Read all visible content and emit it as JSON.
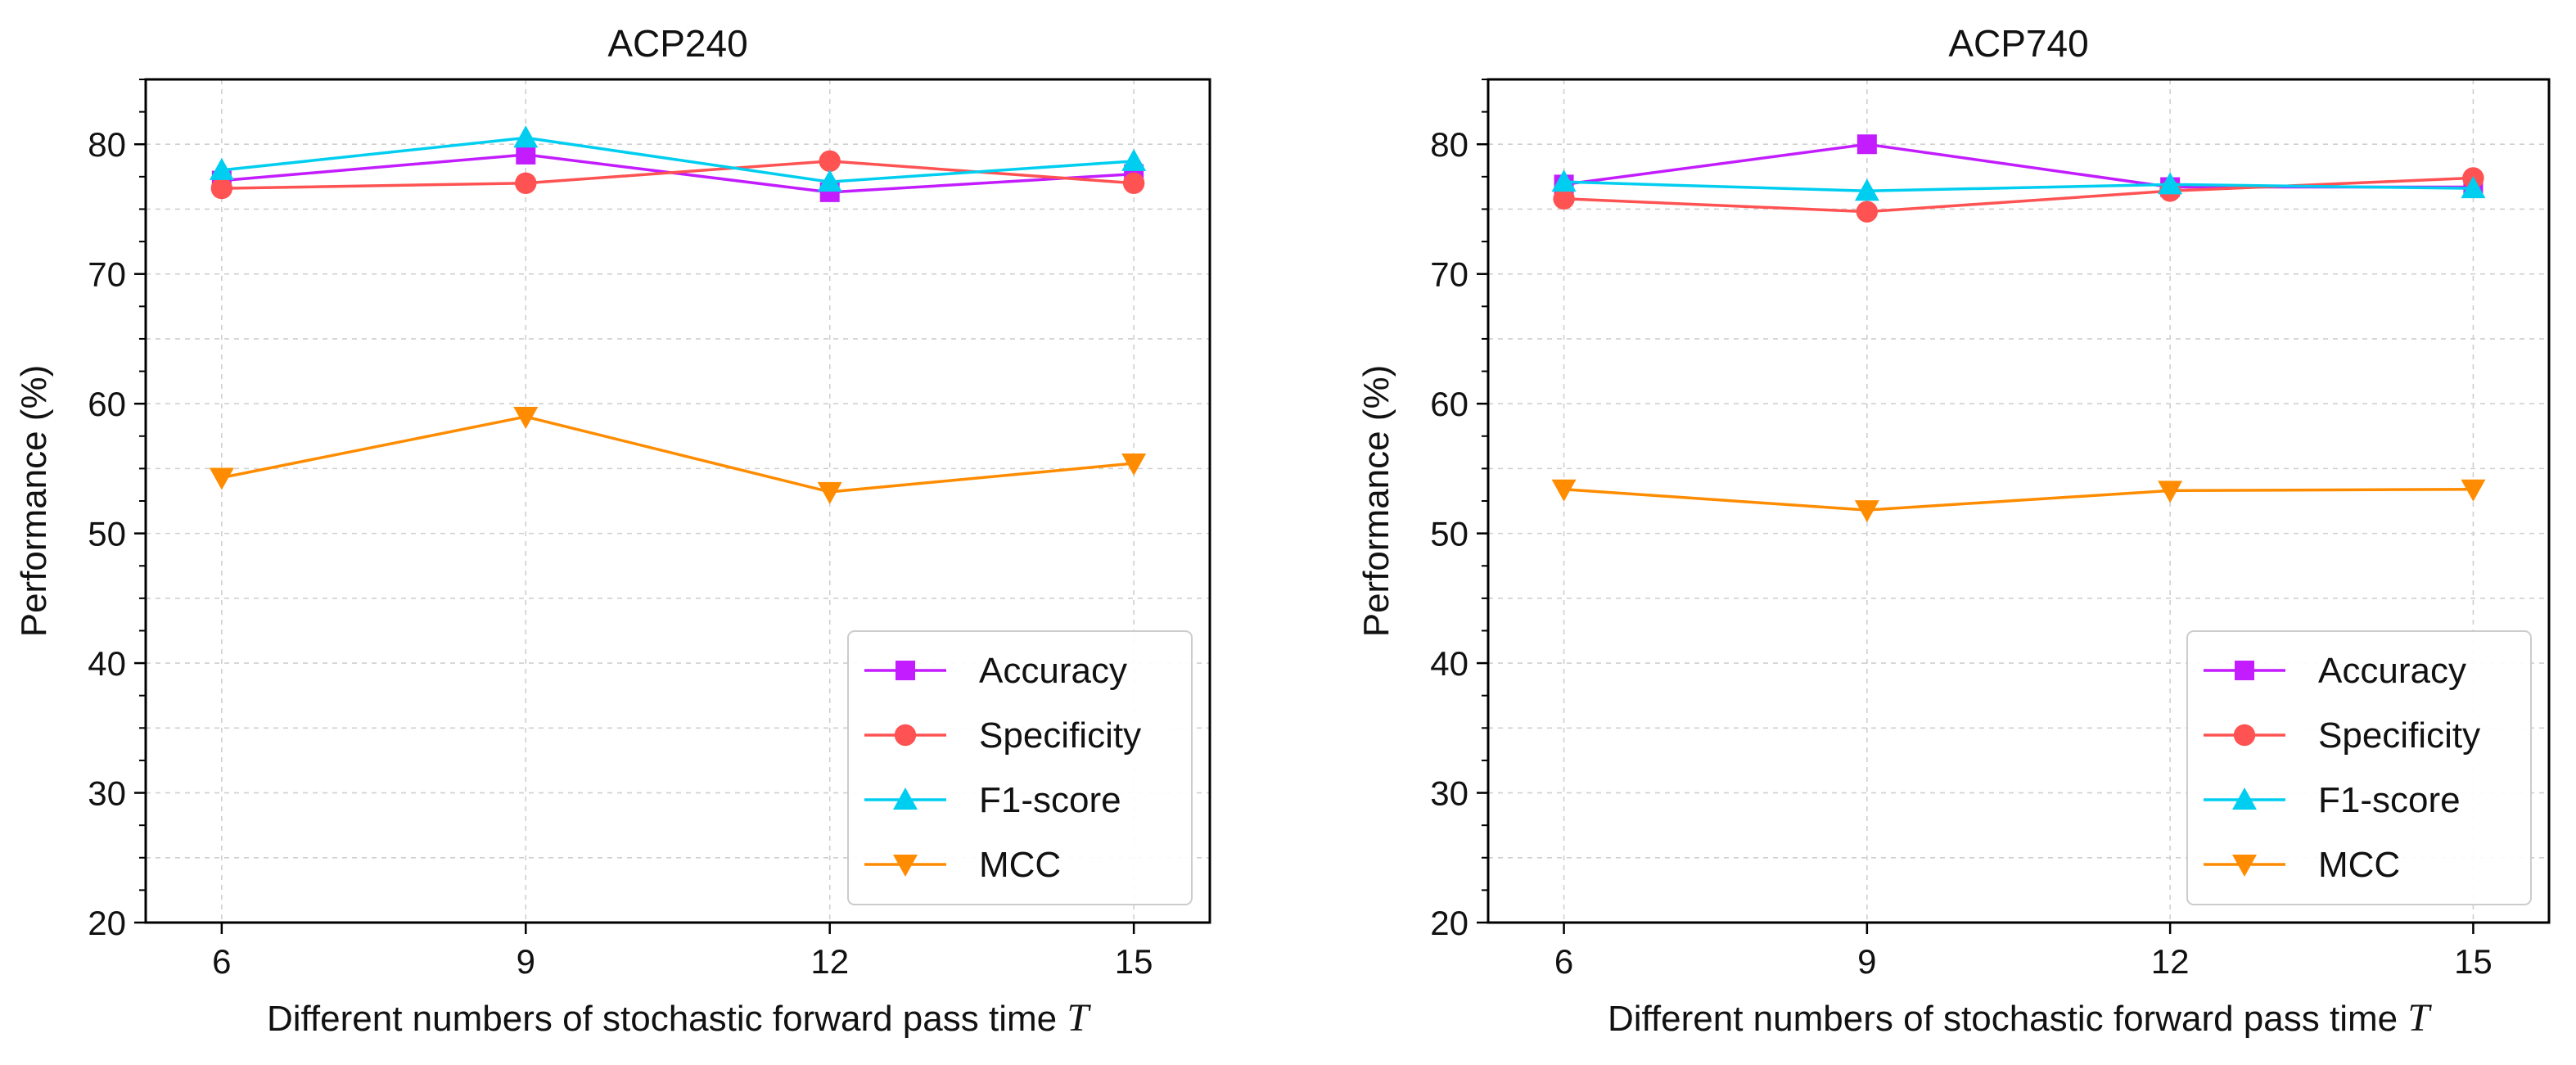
{
  "colors": {
    "Accuracy": "#c21cff",
    "Specificity": "#ff5252",
    "F1-score": "#00cef0",
    "MCC": "#ff8c00"
  },
  "chart_data": [
    {
      "type": "line",
      "title": "ACP240",
      "xlabel": "Different numbers of stochastic forward pass time",
      "xlabel_symbol": "T",
      "ylabel": "Performance (%)",
      "x": [
        6,
        9,
        12,
        15
      ],
      "xticks": [
        "6",
        "9",
        "12",
        "15"
      ],
      "ylim": [
        20,
        85
      ],
      "yticks": [
        20,
        30,
        40,
        50,
        60,
        70,
        80
      ],
      "grid": true,
      "legend_position": "lower-right",
      "series": [
        {
          "name": "Accuracy",
          "marker": "square",
          "values": [
            77.2,
            79.2,
            76.3,
            77.7
          ]
        },
        {
          "name": "Specificity",
          "marker": "circle",
          "values": [
            76.6,
            77.0,
            78.7,
            77.0
          ]
        },
        {
          "name": "F1-score",
          "marker": "triangle-up",
          "values": [
            78.0,
            80.5,
            77.1,
            78.7
          ]
        },
        {
          "name": "MCC",
          "marker": "triangle-down",
          "values": [
            54.3,
            59.0,
            53.2,
            55.4
          ]
        }
      ]
    },
    {
      "type": "line",
      "title": "ACP740",
      "xlabel": "Different numbers of stochastic forward pass time",
      "xlabel_symbol": "T",
      "ylabel": "Performance (%)",
      "x": [
        6,
        9,
        12,
        15
      ],
      "xticks": [
        "6",
        "9",
        "12",
        "15"
      ],
      "ylim": [
        20,
        85
      ],
      "yticks": [
        20,
        30,
        40,
        50,
        60,
        70,
        80
      ],
      "grid": true,
      "legend_position": "lower-right",
      "series": [
        {
          "name": "Accuracy",
          "marker": "square",
          "values": [
            76.9,
            80.0,
            76.7,
            76.7
          ]
        },
        {
          "name": "Specificity",
          "marker": "circle",
          "values": [
            75.8,
            74.8,
            76.4,
            77.4
          ]
        },
        {
          "name": "F1-score",
          "marker": "triangle-up",
          "values": [
            77.1,
            76.4,
            76.9,
            76.6
          ]
        },
        {
          "name": "MCC",
          "marker": "triangle-down",
          "values": [
            53.4,
            51.8,
            53.3,
            53.4
          ]
        }
      ]
    }
  ]
}
